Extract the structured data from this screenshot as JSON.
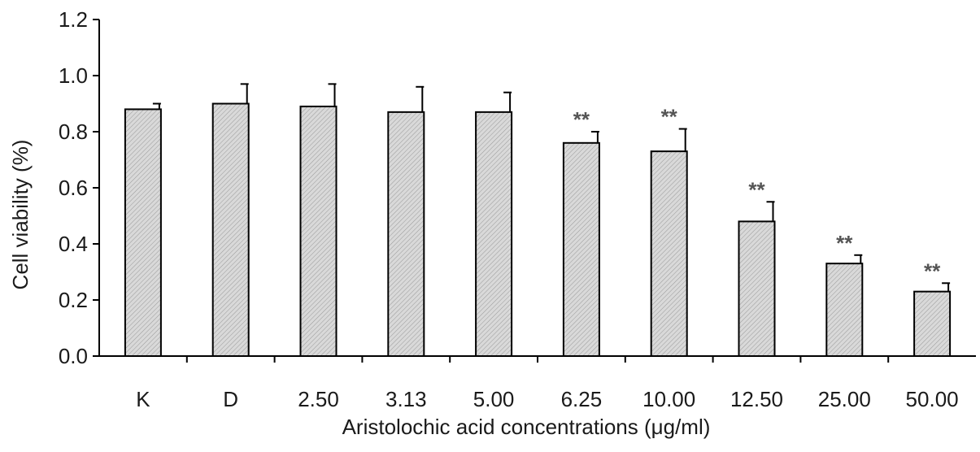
{
  "chart_data": {
    "type": "bar",
    "xlabel": "Aristolochic acid concentrations (μg/ml)",
    "ylabel": "Cell viability (%)",
    "ylim": [
      0,
      1.2
    ],
    "yticks": [
      "0.0",
      "0.2",
      "0.4",
      "0.6",
      "0.8",
      "1.0",
      "1.2"
    ],
    "grid": false,
    "categories": [
      "K",
      "D",
      "2.50",
      "3.13",
      "5.00",
      "6.25",
      "10.00",
      "12.50",
      "25.00",
      "50.00"
    ],
    "series": [
      {
        "values": [
          0.88,
          0.9,
          0.89,
          0.87,
          0.87,
          0.76,
          0.73,
          0.48,
          0.33,
          0.23
        ],
        "errors": [
          0.02,
          0.07,
          0.08,
          0.09,
          0.07,
          0.04,
          0.08,
          0.07,
          0.03,
          0.03
        ]
      }
    ],
    "annotations": [
      "",
      "",
      "",
      "",
      "",
      "**",
      "**",
      "**",
      "**",
      "**"
    ],
    "bar_fill": "#d9d9d9",
    "bar_stroke": "#000000"
  }
}
